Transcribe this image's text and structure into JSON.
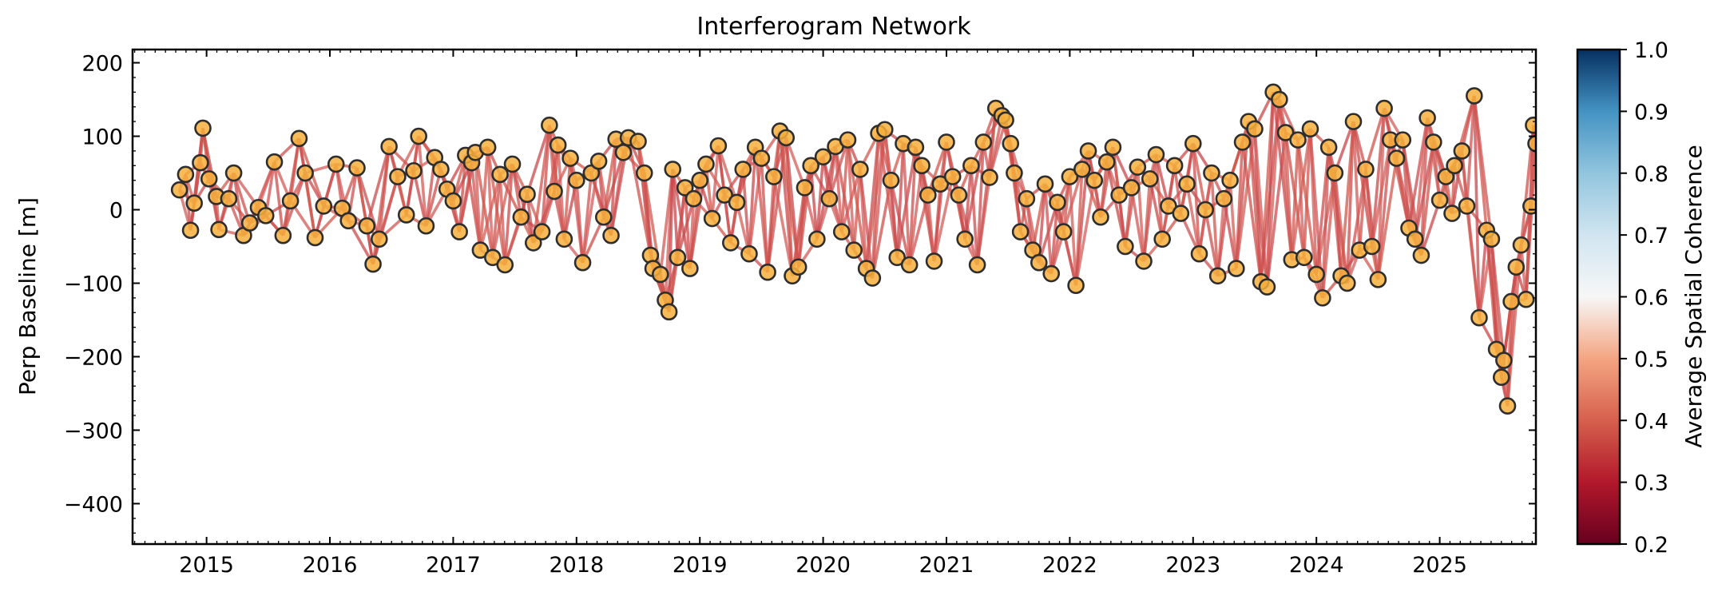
{
  "chart_data": {
    "type": "scatter",
    "title": "Interferogram Network",
    "xlabel": "",
    "ylabel": "Perp Baseline [m]",
    "xlim": [
      2014.4,
      2025.78
    ],
    "ylim": [
      -455,
      218
    ],
    "x_ticks": [
      2015,
      2016,
      2017,
      2018,
      2019,
      2020,
      2021,
      2022,
      2023,
      2024,
      2025
    ],
    "y_ticks": [
      200,
      100,
      0,
      -100,
      -200,
      -300,
      -400
    ],
    "y_tick_labels": [
      "200",
      "100",
      "0",
      "−100",
      "−200",
      "−300",
      "−400"
    ],
    "colorbar": {
      "label": "Average Spatial Coherence",
      "range": [
        0.2,
        1.0
      ],
      "ticks": [
        1.0,
        0.9,
        0.8,
        0.7,
        0.6,
        0.5,
        0.4,
        0.3,
        0.2
      ],
      "tick_labels": [
        "1.0",
        "0.9",
        "0.8",
        "0.7",
        "0.6",
        "0.5",
        "0.4",
        "0.3",
        "0.2"
      ],
      "colormap": "RdBu",
      "masked_above": 0.7
    },
    "marker_face_color": "#f6b03c",
    "marker_edge_color": "#2e2e2e",
    "acquisitions": [
      [
        2014.78,
        27
      ],
      [
        2014.83,
        48
      ],
      [
        2014.87,
        -28
      ],
      [
        2014.9,
        9
      ],
      [
        2014.95,
        64
      ],
      [
        2014.97,
        111
      ],
      [
        2015.02,
        42
      ],
      [
        2015.08,
        18
      ],
      [
        2015.1,
        -27
      ],
      [
        2015.18,
        15
      ],
      [
        2015.22,
        50
      ],
      [
        2015.3,
        -35
      ],
      [
        2015.35,
        -18
      ],
      [
        2015.42,
        3
      ],
      [
        2015.48,
        -8
      ],
      [
        2015.55,
        65
      ],
      [
        2015.62,
        -35
      ],
      [
        2015.68,
        12
      ],
      [
        2015.75,
        97
      ],
      [
        2015.8,
        50
      ],
      [
        2015.88,
        -38
      ],
      [
        2015.95,
        5
      ],
      [
        2016.05,
        62
      ],
      [
        2016.1,
        2
      ],
      [
        2016.15,
        -15
      ],
      [
        2016.22,
        57
      ],
      [
        2016.3,
        -22
      ],
      [
        2016.35,
        -74
      ],
      [
        2016.4,
        -40
      ],
      [
        2016.48,
        86
      ],
      [
        2016.55,
        45
      ],
      [
        2016.62,
        -7
      ],
      [
        2016.68,
        53
      ],
      [
        2016.72,
        100
      ],
      [
        2016.78,
        -22
      ],
      [
        2016.85,
        71
      ],
      [
        2016.9,
        55
      ],
      [
        2016.95,
        28
      ],
      [
        2017.0,
        12
      ],
      [
        2017.05,
        -30
      ],
      [
        2017.1,
        74
      ],
      [
        2017.15,
        64
      ],
      [
        2017.18,
        78
      ],
      [
        2017.22,
        -55
      ],
      [
        2017.28,
        85
      ],
      [
        2017.32,
        -65
      ],
      [
        2017.38,
        48
      ],
      [
        2017.42,
        -75
      ],
      [
        2017.48,
        62
      ],
      [
        2017.55,
        -10
      ],
      [
        2017.6,
        21
      ],
      [
        2017.65,
        -45
      ],
      [
        2017.72,
        -30
      ],
      [
        2017.78,
        115
      ],
      [
        2017.82,
        25
      ],
      [
        2017.85,
        88
      ],
      [
        2017.9,
        -40
      ],
      [
        2017.95,
        70
      ],
      [
        2018.0,
        40
      ],
      [
        2018.05,
        -72
      ],
      [
        2018.12,
        50
      ],
      [
        2018.18,
        66
      ],
      [
        2018.22,
        -10
      ],
      [
        2018.28,
        -35
      ],
      [
        2018.32,
        96
      ],
      [
        2018.38,
        78
      ],
      [
        2018.42,
        98
      ],
      [
        2018.5,
        93
      ],
      [
        2018.55,
        50
      ],
      [
        2018.6,
        -62
      ],
      [
        2018.62,
        -80
      ],
      [
        2018.68,
        -88
      ],
      [
        2018.72,
        -123
      ],
      [
        2018.75,
        -139
      ],
      [
        2018.78,
        55
      ],
      [
        2018.82,
        -65
      ],
      [
        2018.88,
        30
      ],
      [
        2018.92,
        -80
      ],
      [
        2018.95,
        15
      ],
      [
        2019.0,
        40
      ],
      [
        2019.05,
        62
      ],
      [
        2019.1,
        -12
      ],
      [
        2019.15,
        87
      ],
      [
        2019.2,
        20
      ],
      [
        2019.25,
        -45
      ],
      [
        2019.3,
        10
      ],
      [
        2019.35,
        55
      ],
      [
        2019.4,
        -60
      ],
      [
        2019.45,
        85
      ],
      [
        2019.5,
        70
      ],
      [
        2019.55,
        -85
      ],
      [
        2019.6,
        45
      ],
      [
        2019.65,
        107
      ],
      [
        2019.7,
        98
      ],
      [
        2019.75,
        -90
      ],
      [
        2019.8,
        -78
      ],
      [
        2019.85,
        30
      ],
      [
        2019.9,
        60
      ],
      [
        2019.95,
        -40
      ],
      [
        2020.0,
        72
      ],
      [
        2020.05,
        15
      ],
      [
        2020.1,
        86
      ],
      [
        2020.15,
        -30
      ],
      [
        2020.2,
        95
      ],
      [
        2020.25,
        -55
      ],
      [
        2020.3,
        55
      ],
      [
        2020.35,
        -80
      ],
      [
        2020.4,
        -93
      ],
      [
        2020.45,
        104
      ],
      [
        2020.5,
        109
      ],
      [
        2020.55,
        40
      ],
      [
        2020.6,
        -65
      ],
      [
        2020.65,
        90
      ],
      [
        2020.7,
        -75
      ],
      [
        2020.75,
        85
      ],
      [
        2020.8,
        60
      ],
      [
        2020.85,
        20
      ],
      [
        2020.9,
        -70
      ],
      [
        2020.95,
        35
      ],
      [
        2021.0,
        92
      ],
      [
        2021.05,
        45
      ],
      [
        2021.1,
        20
      ],
      [
        2021.15,
        -40
      ],
      [
        2021.2,
        60
      ],
      [
        2021.25,
        -75
      ],
      [
        2021.3,
        92
      ],
      [
        2021.35,
        44
      ],
      [
        2021.4,
        138
      ],
      [
        2021.45,
        128
      ],
      [
        2021.48,
        122
      ],
      [
        2021.52,
        90
      ],
      [
        2021.55,
        50
      ],
      [
        2021.6,
        -30
      ],
      [
        2021.65,
        15
      ],
      [
        2021.7,
        -55
      ],
      [
        2021.75,
        -72
      ],
      [
        2021.8,
        35
      ],
      [
        2021.85,
        -87
      ],
      [
        2021.9,
        10
      ],
      [
        2021.95,
        -30
      ],
      [
        2022.0,
        45
      ],
      [
        2022.05,
        -103
      ],
      [
        2022.1,
        55
      ],
      [
        2022.15,
        80
      ],
      [
        2022.2,
        40
      ],
      [
        2022.25,
        -10
      ],
      [
        2022.3,
        65
      ],
      [
        2022.35,
        85
      ],
      [
        2022.4,
        20
      ],
      [
        2022.45,
        -50
      ],
      [
        2022.5,
        30
      ],
      [
        2022.55,
        58
      ],
      [
        2022.6,
        -70
      ],
      [
        2022.65,
        42
      ],
      [
        2022.7,
        75
      ],
      [
        2022.75,
        -40
      ],
      [
        2022.8,
        5
      ],
      [
        2022.85,
        60
      ],
      [
        2022.9,
        -5
      ],
      [
        2022.95,
        35
      ],
      [
        2023.0,
        90
      ],
      [
        2023.05,
        -60
      ],
      [
        2023.1,
        0
      ],
      [
        2023.15,
        50
      ],
      [
        2023.2,
        -90
      ],
      [
        2023.25,
        15
      ],
      [
        2023.3,
        40
      ],
      [
        2023.35,
        -80
      ],
      [
        2023.4,
        92
      ],
      [
        2023.45,
        120
      ],
      [
        2023.5,
        110
      ],
      [
        2023.55,
        -98
      ],
      [
        2023.6,
        -105
      ],
      [
        2023.65,
        160
      ],
      [
        2023.7,
        150
      ],
      [
        2023.75,
        105
      ],
      [
        2023.8,
        -68
      ],
      [
        2023.85,
        95
      ],
      [
        2023.9,
        -65
      ],
      [
        2023.95,
        110
      ],
      [
        2024.0,
        -88
      ],
      [
        2024.05,
        -120
      ],
      [
        2024.1,
        85
      ],
      [
        2024.15,
        50
      ],
      [
        2024.2,
        -90
      ],
      [
        2024.25,
        -100
      ],
      [
        2024.3,
        120
      ],
      [
        2024.35,
        -55
      ],
      [
        2024.4,
        55
      ],
      [
        2024.45,
        -50
      ],
      [
        2024.5,
        -95
      ],
      [
        2024.55,
        138
      ],
      [
        2024.6,
        95
      ],
      [
        2024.65,
        70
      ],
      [
        2024.7,
        95
      ],
      [
        2024.75,
        -25
      ],
      [
        2024.8,
        -40
      ],
      [
        2024.85,
        -62
      ],
      [
        2024.9,
        125
      ],
      [
        2024.95,
        92
      ],
      [
        2025.0,
        13
      ],
      [
        2025.05,
        45
      ],
      [
        2025.1,
        -5
      ],
      [
        2025.12,
        60
      ],
      [
        2025.18,
        80
      ],
      [
        2025.22,
        5
      ],
      [
        2025.28,
        155
      ],
      [
        2025.32,
        -147
      ],
      [
        2025.38,
        -28
      ],
      [
        2025.42,
        -40
      ],
      [
        2025.46,
        -190
      ],
      [
        2025.5,
        -228
      ],
      [
        2025.52,
        -205
      ],
      [
        2025.55,
        -267
      ],
      [
        2025.58,
        -125
      ],
      [
        2025.62,
        -78
      ],
      [
        2025.66,
        -48
      ],
      [
        2025.7,
        -122
      ],
      [
        2025.74,
        5
      ],
      [
        2025.76,
        115
      ],
      [
        2025.78,
        90
      ]
    ]
  }
}
